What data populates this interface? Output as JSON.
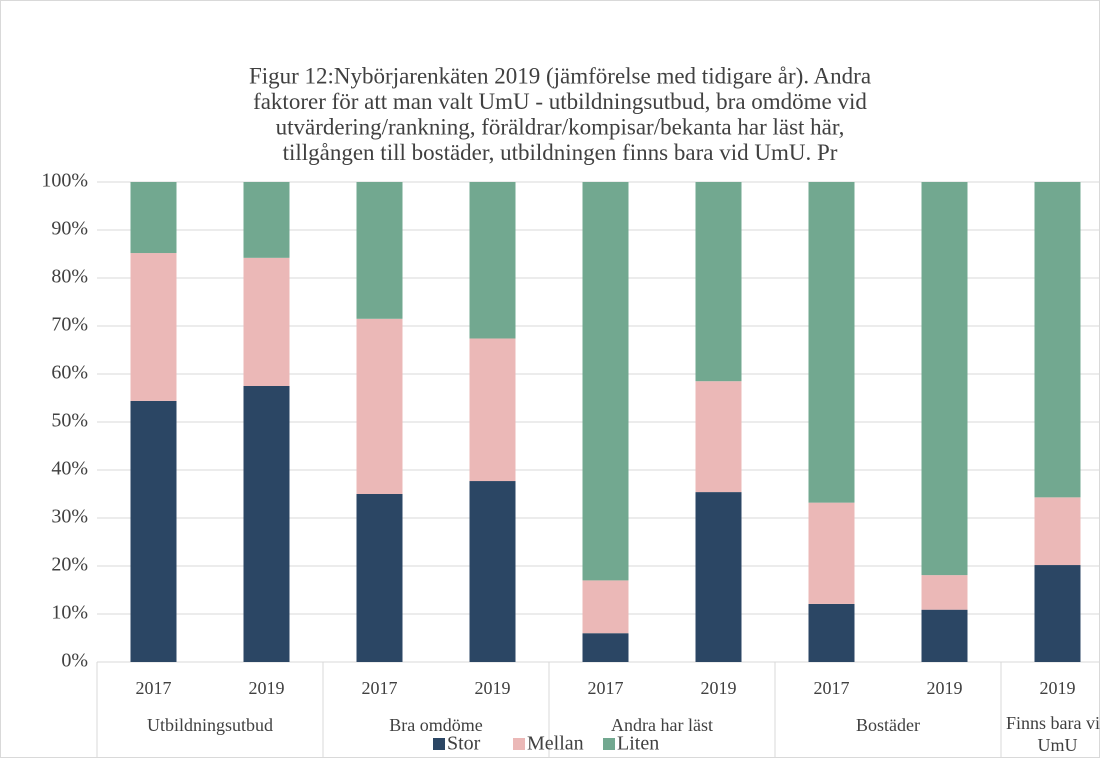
{
  "chart_data": {
    "type": "stacked_bar",
    "title": [
      "Figur 12:Nybörjarenkäten 2019 (jämförelse med tidigare år). Andra",
      "faktorer för att man valt UmU - utbildningsutbud, bra omdöme vid",
      "utvärdering/rankning, föräldrar/kompisar/bekanta har läst här,",
      "tillgången till bostäder, utbildningen finns bara vid UmU. Pr"
    ],
    "groups": [
      {
        "name": "Utbildningsutbud",
        "categories": [
          "2017",
          "2019"
        ]
      },
      {
        "name": "Bra omdöme",
        "categories": [
          "2017",
          "2019"
        ]
      },
      {
        "name": "Andra har läst",
        "categories": [
          "2017",
          "2019"
        ]
      },
      {
        "name": "Bostäder",
        "categories": [
          "2017",
          "2019"
        ]
      },
      {
        "name": "Finns bara vid UmU",
        "categories": [
          "2019"
        ]
      }
    ],
    "series": [
      {
        "name": "Stor",
        "color": "#2b4664",
        "values": [
          54.4,
          57.5,
          35.0,
          37.7,
          6.0,
          35.4,
          12.1,
          10.9,
          20.2
        ]
      },
      {
        "name": "Mellan",
        "color": "#ebb8b7",
        "values": [
          30.8,
          26.7,
          36.5,
          29.7,
          11.0,
          23.1,
          21.1,
          7.2,
          14.1
        ]
      },
      {
        "name": "Liten",
        "color": "#72a890",
        "values": [
          14.8,
          15.8,
          28.5,
          32.6,
          83.0,
          41.5,
          66.8,
          81.9,
          65.7
        ]
      }
    ],
    "ylim": [
      0,
      100
    ],
    "yticks": [
      {
        "value": 0,
        "label": "0%"
      },
      {
        "value": 10,
        "label": "10%"
      },
      {
        "value": 20,
        "label": "20%"
      },
      {
        "value": 30,
        "label": "30%"
      },
      {
        "value": 40,
        "label": "40%"
      },
      {
        "value": 50,
        "label": "50%"
      },
      {
        "value": 60,
        "label": "60%"
      },
      {
        "value": 70,
        "label": "70%"
      },
      {
        "value": 80,
        "label": "80%"
      },
      {
        "value": 90,
        "label": "90%"
      },
      {
        "value": 100,
        "label": "100%"
      }
    ],
    "grid": true,
    "legend": "bottom"
  }
}
